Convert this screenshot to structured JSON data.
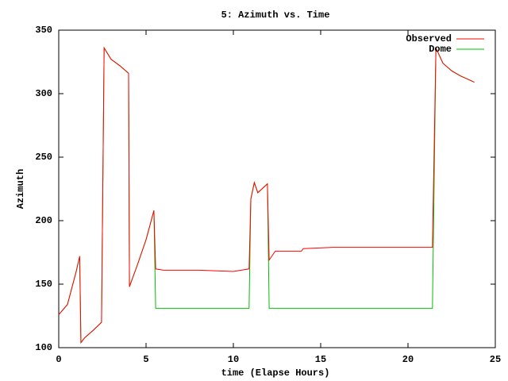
{
  "chart_data": {
    "type": "line",
    "title": "5: Azimuth vs. Time",
    "xlabel": "time (Elapse Hours)",
    "ylabel": "Azimuth",
    "x": [
      0,
      0.5,
      1.0,
      1.2,
      1.27,
      1.5,
      2.0,
      2.45,
      2.6,
      3.0,
      3.5,
      4.0,
      4.05,
      4.5,
      5.0,
      5.45,
      5.55,
      6.0,
      8.0,
      10.0,
      10.9,
      11.0,
      11.2,
      11.4,
      11.95,
      12.05,
      12.4,
      13.9,
      14.0,
      15.7,
      21.4,
      21.6,
      22.0,
      22.5,
      23.0,
      23.8
    ],
    "series": [
      {
        "name": "Observed",
        "color": "#ff0000",
        "values": [
          126,
          134,
          160,
          172,
          104,
          108,
          114,
          120,
          336,
          327,
          322,
          316,
          148,
          165,
          185,
          208,
          162,
          161,
          161,
          160,
          162,
          217,
          230,
          222,
          229,
          169,
          176,
          176,
          178,
          179,
          179,
          336,
          324,
          318,
          314,
          309
        ]
      },
      {
        "name": "Dome",
        "color": "#00c000",
        "values": [
          126,
          134,
          160,
          172,
          104,
          108,
          114,
          120,
          336,
          327,
          322,
          316,
          148,
          165,
          185,
          208,
          131,
          131,
          131,
          131,
          131,
          217,
          230,
          222,
          229,
          131,
          131,
          131,
          131,
          131,
          131,
          336,
          324,
          318,
          314,
          309
        ]
      }
    ],
    "xlim": [
      0,
      25
    ],
    "xticks": [
      0,
      5,
      10,
      15,
      20,
      25
    ],
    "ylim": [
      100,
      350
    ],
    "yticks": [
      100,
      150,
      200,
      250,
      300,
      350
    ],
    "legend": "upper right"
  }
}
